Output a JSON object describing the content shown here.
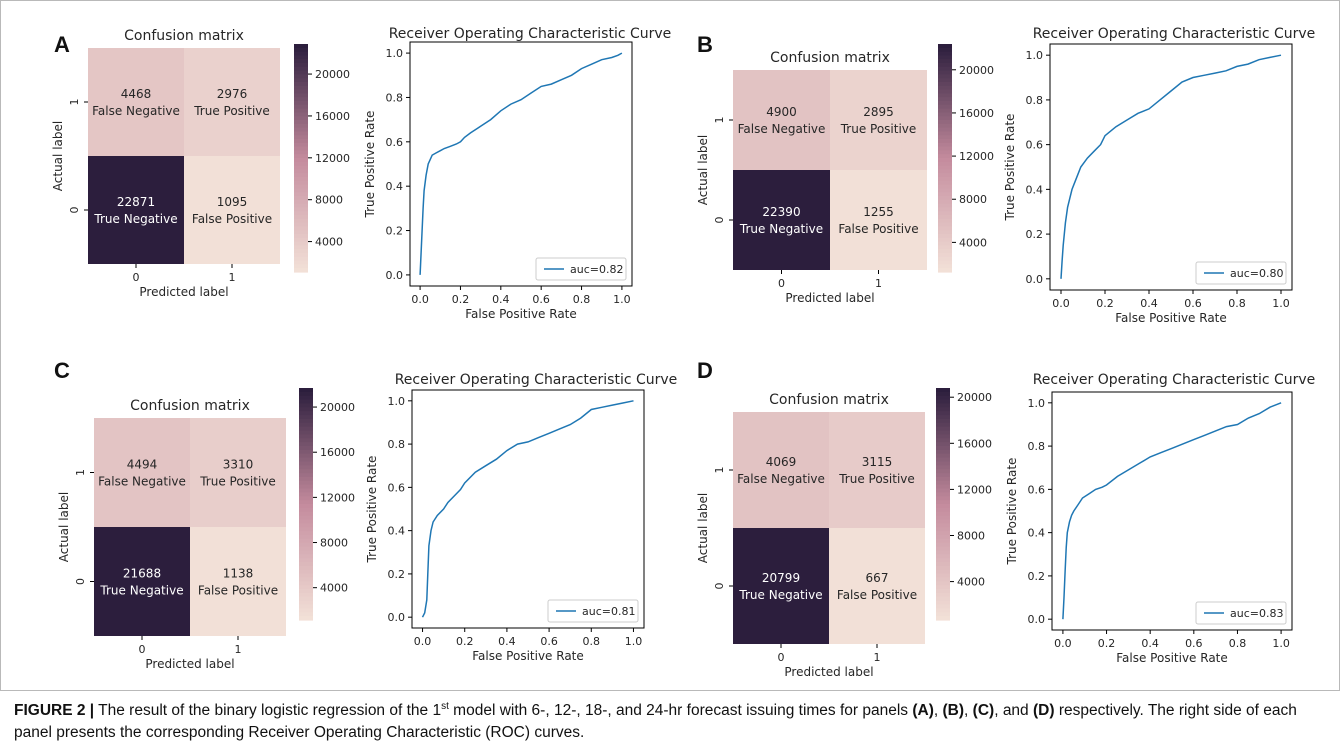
{
  "caption": {
    "label": "FIGURE 2 |",
    "text_1": " The result of the binary logistic regression of the 1",
    "sup": "st",
    "text_2": " model with 6-, 12-, 18-, and 24-hr forecast issuing times for panels ",
    "ref_a": "(A)",
    "sep_1": ", ",
    "ref_b": "(B)",
    "sep_2": ", ",
    "ref_c": "(C)",
    "sep_3": ", and ",
    "ref_d": "(D)",
    "text_3": " respectively. The right side of each panel presents the corresponding Receiver Operating Characteristic (ROC) curves."
  },
  "colors": {
    "cmap_low": "#f2e0d7",
    "cmap_mid": "#c48b9d",
    "cmap_high": "#2c1e3d",
    "roc_line": "#1f77b4",
    "axis": "#000000",
    "text": "#262626"
  },
  "chart_data": [
    {
      "panel": "A",
      "type": "heatmap",
      "title": "Confusion matrix",
      "xlabel": "Predicted label",
      "ylabel": "Actual label",
      "x_categories": [
        "0",
        "1"
      ],
      "y_categories": [
        "1",
        "0"
      ],
      "cells": [
        {
          "row": "1",
          "col": "0",
          "value": 4468,
          "label": "False Negative"
        },
        {
          "row": "1",
          "col": "1",
          "value": 2976,
          "label": "True Positive"
        },
        {
          "row": "0",
          "col": "0",
          "value": 22871,
          "label": "True Negative"
        },
        {
          "row": "0",
          "col": "1",
          "value": 1095,
          "label": "False Positive"
        }
      ],
      "colorbar": {
        "min": 1095,
        "max": 22871,
        "ticks": [
          4000,
          8000,
          12000,
          16000,
          20000
        ]
      },
      "roc": {
        "type": "line",
        "title": "Receiver Operating Characteristic Curve",
        "xlabel": "False Positive Rate",
        "ylabel": "True Positive Rate",
        "xlim": [
          0,
          1
        ],
        "ylim": [
          0,
          1
        ],
        "xticks": [
          "0.0",
          "0.2",
          "0.4",
          "0.6",
          "0.8",
          "1.0"
        ],
        "yticks": [
          "0.0",
          "0.2",
          "0.4",
          "0.6",
          "0.8",
          "1.0"
        ],
        "legend": "auc=0.82",
        "legend_position": "lower right",
        "x": [
          0.0,
          0.005,
          0.01,
          0.015,
          0.02,
          0.03,
          0.04,
          0.05,
          0.06,
          0.08,
          0.1,
          0.12,
          0.15,
          0.18,
          0.2,
          0.22,
          0.25,
          0.3,
          0.35,
          0.4,
          0.45,
          0.5,
          0.55,
          0.6,
          0.65,
          0.7,
          0.75,
          0.8,
          0.85,
          0.9,
          0.95,
          0.98,
          1.0
        ],
        "y": [
          0.0,
          0.1,
          0.2,
          0.3,
          0.38,
          0.45,
          0.5,
          0.52,
          0.54,
          0.55,
          0.56,
          0.57,
          0.58,
          0.59,
          0.6,
          0.62,
          0.64,
          0.67,
          0.7,
          0.74,
          0.77,
          0.79,
          0.82,
          0.85,
          0.86,
          0.88,
          0.9,
          0.93,
          0.95,
          0.97,
          0.98,
          0.99,
          1.0
        ]
      }
    },
    {
      "panel": "B",
      "type": "heatmap",
      "title": "Confusion matrix",
      "xlabel": "Predicted label",
      "ylabel": "Actual label",
      "x_categories": [
        "0",
        "1"
      ],
      "y_categories": [
        "1",
        "0"
      ],
      "cells": [
        {
          "row": "1",
          "col": "0",
          "value": 4900,
          "label": "False Negative"
        },
        {
          "row": "1",
          "col": "1",
          "value": 2895,
          "label": "True Positive"
        },
        {
          "row": "0",
          "col": "0",
          "value": 22390,
          "label": "True Negative"
        },
        {
          "row": "0",
          "col": "1",
          "value": 1255,
          "label": "False Positive"
        }
      ],
      "colorbar": {
        "min": 1255,
        "max": 22390,
        "ticks": [
          4000,
          8000,
          12000,
          16000,
          20000
        ]
      },
      "roc": {
        "type": "line",
        "title": "Receiver Operating Characteristic Curve",
        "xlabel": "False Positive Rate",
        "ylabel": "True Positive Rate",
        "xlim": [
          0,
          1
        ],
        "ylim": [
          0,
          1
        ],
        "xticks": [
          "0.0",
          "0.2",
          "0.4",
          "0.6",
          "0.8",
          "1.0"
        ],
        "yticks": [
          "0.0",
          "0.2",
          "0.4",
          "0.6",
          "0.8",
          "1.0"
        ],
        "legend": "auc=0.80",
        "legend_position": "lower right",
        "x": [
          0.0,
          0.005,
          0.01,
          0.02,
          0.03,
          0.04,
          0.05,
          0.07,
          0.09,
          0.12,
          0.15,
          0.18,
          0.2,
          0.25,
          0.3,
          0.35,
          0.4,
          0.45,
          0.5,
          0.55,
          0.6,
          0.65,
          0.7,
          0.75,
          0.8,
          0.85,
          0.9,
          0.95,
          1.0
        ],
        "y": [
          0.0,
          0.08,
          0.15,
          0.25,
          0.32,
          0.36,
          0.4,
          0.45,
          0.5,
          0.54,
          0.57,
          0.6,
          0.64,
          0.68,
          0.71,
          0.74,
          0.76,
          0.8,
          0.84,
          0.88,
          0.9,
          0.91,
          0.92,
          0.93,
          0.95,
          0.96,
          0.98,
          0.99,
          1.0
        ]
      }
    },
    {
      "panel": "C",
      "type": "heatmap",
      "title": "Confusion matrix",
      "xlabel": "Predicted label",
      "ylabel": "Actual label",
      "x_categories": [
        "0",
        "1"
      ],
      "y_categories": [
        "1",
        "0"
      ],
      "cells": [
        {
          "row": "1",
          "col": "0",
          "value": 4494,
          "label": "False Negative"
        },
        {
          "row": "1",
          "col": "1",
          "value": 3310,
          "label": "True Positive"
        },
        {
          "row": "0",
          "col": "0",
          "value": 21688,
          "label": "True Negative"
        },
        {
          "row": "0",
          "col": "1",
          "value": 1138,
          "label": "False Positive"
        }
      ],
      "colorbar": {
        "min": 1138,
        "max": 21688,
        "ticks": [
          4000,
          8000,
          12000,
          16000,
          20000
        ]
      },
      "roc": {
        "type": "line",
        "title": "Receiver Operating Characteristic Curve",
        "xlabel": "False Positive Rate",
        "ylabel": "True Positive Rate",
        "xlim": [
          0,
          1
        ],
        "ylim": [
          0,
          1
        ],
        "xticks": [
          "0.0",
          "0.2",
          "0.4",
          "0.6",
          "0.8",
          "1.0"
        ],
        "yticks": [
          "0.0",
          "0.2",
          "0.4",
          "0.6",
          "0.8",
          "1.0"
        ],
        "legend": "auc=0.81",
        "legend_position": "lower right",
        "x": [
          0.0,
          0.01,
          0.02,
          0.025,
          0.03,
          0.04,
          0.05,
          0.07,
          0.1,
          0.12,
          0.15,
          0.18,
          0.2,
          0.25,
          0.3,
          0.35,
          0.4,
          0.45,
          0.5,
          0.55,
          0.6,
          0.65,
          0.7,
          0.75,
          0.8,
          0.85,
          0.9,
          0.95,
          1.0
        ],
        "y": [
          0.0,
          0.02,
          0.08,
          0.2,
          0.33,
          0.4,
          0.44,
          0.47,
          0.5,
          0.53,
          0.56,
          0.59,
          0.62,
          0.67,
          0.7,
          0.73,
          0.77,
          0.8,
          0.81,
          0.83,
          0.85,
          0.87,
          0.89,
          0.92,
          0.96,
          0.97,
          0.98,
          0.99,
          1.0
        ]
      }
    },
    {
      "panel": "D",
      "type": "heatmap",
      "title": "Confusion matrix",
      "xlabel": "Predicted label",
      "ylabel": "Actual label",
      "x_categories": [
        "0",
        "1"
      ],
      "y_categories": [
        "1",
        "0"
      ],
      "cells": [
        {
          "row": "1",
          "col": "0",
          "value": 4069,
          "label": "False Negative"
        },
        {
          "row": "1",
          "col": "1",
          "value": 3115,
          "label": "True Positive"
        },
        {
          "row": "0",
          "col": "0",
          "value": 20799,
          "label": "True Negative"
        },
        {
          "row": "0",
          "col": "1",
          "value": 667,
          "label": "False Positive"
        }
      ],
      "colorbar": {
        "min": 667,
        "max": 20799,
        "ticks": [
          4000,
          8000,
          12000,
          16000,
          20000
        ]
      },
      "roc": {
        "type": "line",
        "title": "Receiver Operating Characteristic Curve",
        "xlabel": "False Positive Rate",
        "ylabel": "True Positive Rate",
        "xlim": [
          0,
          1
        ],
        "ylim": [
          0,
          1
        ],
        "xticks": [
          "0.0",
          "0.2",
          "0.4",
          "0.6",
          "0.8",
          "1.0"
        ],
        "yticks": [
          "0.0",
          "0.2",
          "0.4",
          "0.6",
          "0.8",
          "1.0"
        ],
        "legend": "auc=0.83",
        "legend_position": "lower right",
        "x": [
          0.0,
          0.005,
          0.01,
          0.015,
          0.02,
          0.03,
          0.04,
          0.05,
          0.07,
          0.09,
          0.12,
          0.15,
          0.18,
          0.2,
          0.25,
          0.3,
          0.35,
          0.4,
          0.45,
          0.5,
          0.55,
          0.6,
          0.65,
          0.7,
          0.75,
          0.8,
          0.85,
          0.9,
          0.95,
          1.0
        ],
        "y": [
          0.0,
          0.1,
          0.22,
          0.33,
          0.4,
          0.45,
          0.48,
          0.5,
          0.53,
          0.56,
          0.58,
          0.6,
          0.61,
          0.62,
          0.66,
          0.69,
          0.72,
          0.75,
          0.77,
          0.79,
          0.81,
          0.83,
          0.85,
          0.87,
          0.89,
          0.9,
          0.93,
          0.95,
          0.98,
          1.0
        ]
      }
    }
  ]
}
